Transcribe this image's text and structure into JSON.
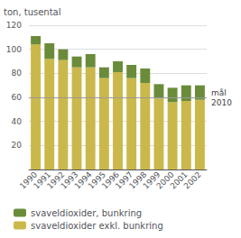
{
  "chart_data": {
    "type": "bar",
    "stacked": true,
    "y_label": "ton, tusental",
    "categories": [
      "1990",
      "1991",
      "1992",
      "1993",
      "1994",
      "1995",
      "1996",
      "1997",
      "1998",
      "1999",
      "2000",
      "2001",
      "2002"
    ],
    "series": [
      {
        "name": "svaveldioxider exkl. bunkring",
        "color": "#cbb84a",
        "values": [
          104,
          92,
          91,
          85,
          85,
          76,
          81,
          76,
          72,
          59,
          56,
          57,
          58
        ]
      },
      {
        "name": "svaveldioxider, bunkring",
        "color": "#6a8c3a",
        "values": [
          7,
          13,
          9,
          9,
          11,
          9,
          9,
          11,
          12,
          12,
          12,
          13,
          12
        ]
      }
    ],
    "annotations": [
      {
        "y": 60,
        "text": [
          "mål",
          "2010"
        ]
      }
    ],
    "ylim": [
      0,
      120
    ],
    "yticks": [
      20,
      40,
      60,
      80,
      100,
      120
    ],
    "grid": true,
    "legend": "bottom"
  }
}
